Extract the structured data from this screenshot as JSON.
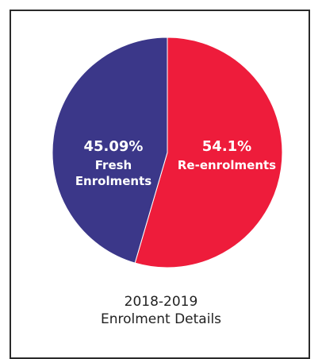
{
  "chart_data": {
    "type": "pie",
    "title": "2018-2019",
    "subtitle": "Enrolment Details",
    "slices": [
      {
        "label_line1": "Re-enrolments",
        "label_line2": "",
        "value": 54.1,
        "display": "54.1%",
        "color": "#ee1c3b"
      },
      {
        "label_line1": "Fresh",
        "label_line2": "Enrolments",
        "value": 45.09,
        "display": "45.09%",
        "color": "#3b3789"
      }
    ]
  }
}
